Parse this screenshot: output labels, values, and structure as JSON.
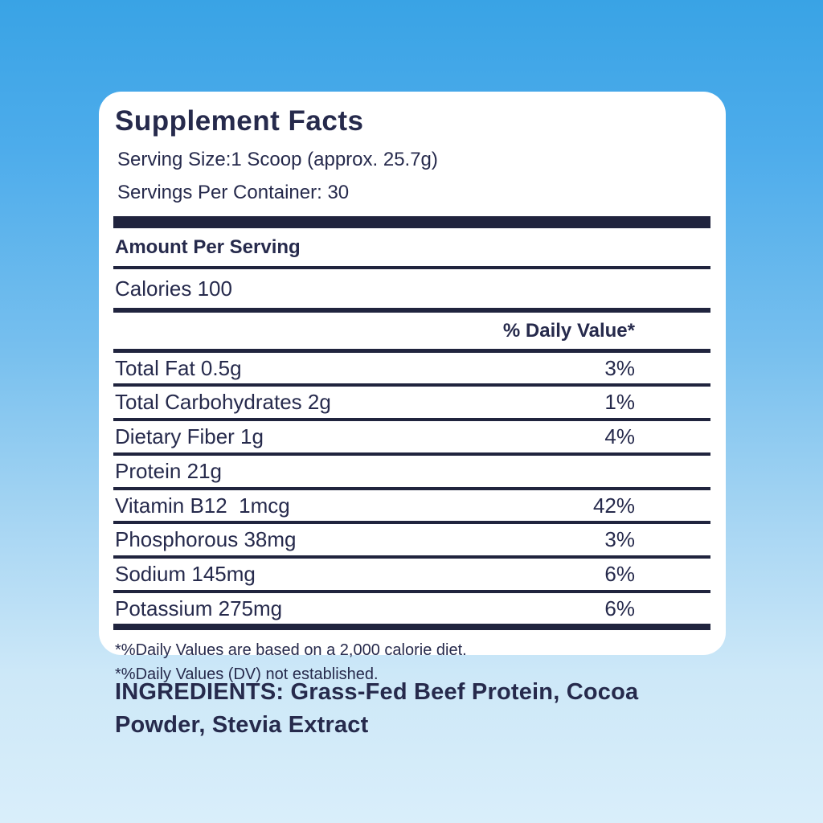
{
  "label": {
    "title": "Supplement Facts",
    "serving_size": "Serving Size:1 Scoop (approx. 25.7g)",
    "servings_per_container": "Servings Per Container: 30",
    "amount_per_serving": "Amount Per Serving",
    "calories": "Calories 100",
    "daily_value_header": "% Daily Value*",
    "rows": [
      {
        "name": "Total Fat 0.5g",
        "dv": "3%"
      },
      {
        "name": "Total Carbohydrates 2g",
        "dv": "1%"
      },
      {
        "name": "Dietary Fiber 1g",
        "dv": "4%"
      },
      {
        "name": "Protein 21g",
        "dv": ""
      },
      {
        "name": "Vitamin B12  1mcg",
        "dv": "42%"
      },
      {
        "name": "Phosphorous 38mg",
        "dv": "3%"
      },
      {
        "name": "Sodium 145mg",
        "dv": "6%"
      },
      {
        "name": "Potassium 275mg",
        "dv": "6%"
      }
    ],
    "footnotes": [
      "*%Daily Values are based on a 2,000 calorie diet.",
      "*%Daily Values (DV) not established."
    ]
  },
  "ingredients": {
    "text": "INGREDIENTS: Grass-Fed Beef Protein, Cocoa Powder, Stevia Extract"
  },
  "colors": {
    "navy_text": "#262a4c",
    "rule_navy": "#20243e",
    "card_background": "#ffffff",
    "background_top": "#39a3e5",
    "background_bottom": "#d9eefa"
  }
}
